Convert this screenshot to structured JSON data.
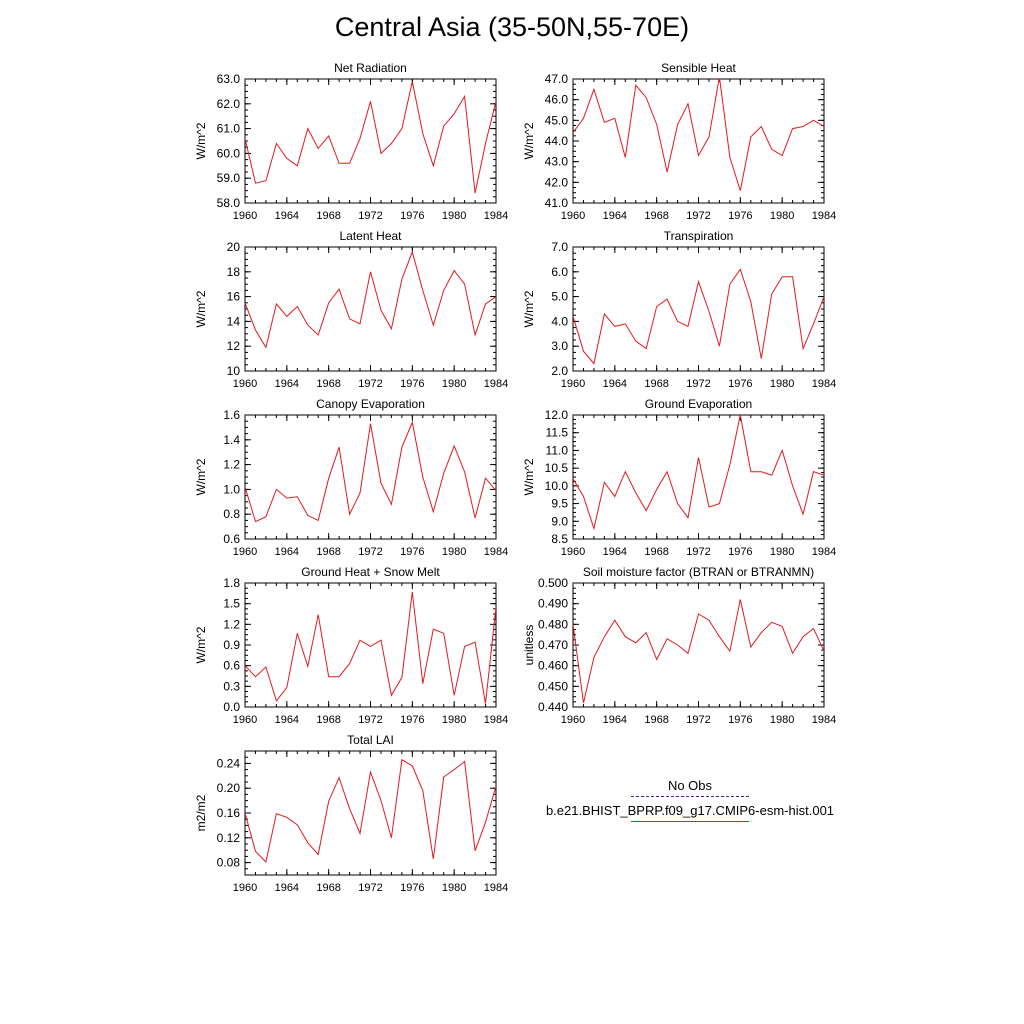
{
  "title": "Central Asia (35-50N,55-70E)",
  "colors": {
    "series": "#e31a1c",
    "axis": "#000000",
    "obs": "#2b2b8c"
  },
  "legend": {
    "obs_label": "No Obs",
    "model_label": "b.e21.BHIST_BPRP.f09_g17.CMIP6-esm-hist.001"
  },
  "chart_data": [
    {
      "type": "line",
      "title": "Net Radiation",
      "ylabel": "W/m^2",
      "x": [
        1960,
        1961,
        1962,
        1963,
        1964,
        1965,
        1966,
        1967,
        1968,
        1969,
        1970,
        1971,
        1972,
        1973,
        1974,
        1975,
        1976,
        1977,
        1978,
        1979,
        1980,
        1981,
        1982,
        1983,
        1984
      ],
      "values": [
        60.6,
        58.8,
        58.9,
        60.4,
        59.8,
        59.5,
        61.0,
        60.2,
        60.7,
        59.6,
        59.6,
        60.6,
        62.1,
        60.0,
        60.4,
        61.0,
        62.9,
        60.8,
        59.5,
        61.1,
        61.6,
        62.3,
        58.4,
        60.4,
        62.1
      ],
      "xlim": [
        1960,
        1984
      ],
      "ylim": [
        58.0,
        63.0
      ],
      "yticks": [
        "58.0",
        "59.0",
        "60.0",
        "61.0",
        "62.0",
        "63.0"
      ],
      "xticks": [
        "1960",
        "1964",
        "1968",
        "1972",
        "1976",
        "1980",
        "1984"
      ]
    },
    {
      "type": "line",
      "title": "Sensible Heat",
      "ylabel": "W/m^2",
      "x": [
        1960,
        1961,
        1962,
        1963,
        1964,
        1965,
        1966,
        1967,
        1968,
        1969,
        1970,
        1971,
        1972,
        1973,
        1974,
        1975,
        1976,
        1977,
        1978,
        1979,
        1980,
        1981,
        1982,
        1983,
        1984
      ],
      "values": [
        44.4,
        45.1,
        46.5,
        44.9,
        45.1,
        43.2,
        46.7,
        46.1,
        44.8,
        42.5,
        44.8,
        45.8,
        43.3,
        44.2,
        47.1,
        43.2,
        41.6,
        44.2,
        44.7,
        43.6,
        43.3,
        44.6,
        44.7,
        45.0,
        44.7
      ],
      "xlim": [
        1960,
        1984
      ],
      "ylim": [
        41.0,
        47.0
      ],
      "yticks": [
        "41.0",
        "42.0",
        "43.0",
        "44.0",
        "45.0",
        "46.0",
        "47.0"
      ],
      "xticks": [
        "1960",
        "1964",
        "1968",
        "1972",
        "1976",
        "1980",
        "1984"
      ]
    },
    {
      "type": "line",
      "title": "Latent Heat",
      "ylabel": "W/m^2",
      "x": [
        1960,
        1961,
        1962,
        1963,
        1964,
        1965,
        1966,
        1967,
        1968,
        1969,
        1970,
        1971,
        1972,
        1973,
        1974,
        1975,
        1976,
        1977,
        1978,
        1979,
        1980,
        1981,
        1982,
        1983,
        1984
      ],
      "values": [
        15.5,
        13.3,
        11.9,
        15.4,
        14.4,
        15.2,
        13.7,
        12.9,
        15.5,
        16.6,
        14.2,
        13.8,
        18.0,
        14.9,
        13.4,
        17.4,
        19.6,
        16.5,
        13.7,
        16.5,
        18.1,
        17.0,
        12.9,
        15.4,
        16.0
      ],
      "xlim": [
        1960,
        1984
      ],
      "ylim": [
        10,
        20
      ],
      "yticks": [
        "10",
        "12",
        "14",
        "16",
        "18",
        "20"
      ],
      "xticks": [
        "1960",
        "1964",
        "1968",
        "1972",
        "1976",
        "1980",
        "1984"
      ]
    },
    {
      "type": "line",
      "title": "Transpiration",
      "ylabel": "W/m^2",
      "x": [
        1960,
        1961,
        1962,
        1963,
        1964,
        1965,
        1966,
        1967,
        1968,
        1969,
        1970,
        1971,
        1972,
        1973,
        1974,
        1975,
        1976,
        1977,
        1978,
        1979,
        1980,
        1981,
        1982,
        1983,
        1984
      ],
      "values": [
        4.2,
        2.8,
        2.3,
        4.3,
        3.8,
        3.9,
        3.2,
        2.9,
        4.6,
        4.9,
        4.0,
        3.8,
        5.6,
        4.4,
        3.0,
        5.5,
        6.1,
        4.8,
        2.5,
        5.1,
        5.8,
        5.8,
        2.9,
        3.9,
        5.0
      ],
      "xlim": [
        1960,
        1984
      ],
      "ylim": [
        2.0,
        7.0
      ],
      "yticks": [
        "2.0",
        "3.0",
        "4.0",
        "5.0",
        "6.0",
        "7.0"
      ],
      "xticks": [
        "1960",
        "1964",
        "1968",
        "1972",
        "1976",
        "1980",
        "1984"
      ]
    },
    {
      "type": "line",
      "title": "Canopy Evaporation",
      "ylabel": "W/m^2",
      "x": [
        1960,
        1961,
        1962,
        1963,
        1964,
        1965,
        1966,
        1967,
        1968,
        1969,
        1970,
        1971,
        1972,
        1973,
        1974,
        1975,
        1976,
        1977,
        1978,
        1979,
        1980,
        1981,
        1982,
        1983,
        1984
      ],
      "values": [
        1.02,
        0.74,
        0.78,
        1.0,
        0.93,
        0.94,
        0.79,
        0.75,
        1.09,
        1.34,
        0.8,
        0.97,
        1.53,
        1.05,
        0.88,
        1.34,
        1.54,
        1.1,
        0.82,
        1.13,
        1.35,
        1.14,
        0.77,
        1.09,
        0.99
      ],
      "xlim": [
        1960,
        1984
      ],
      "ylim": [
        0.6,
        1.6
      ],
      "yticks": [
        "0.6",
        "0.8",
        "1.0",
        "1.2",
        "1.4",
        "1.6"
      ],
      "xticks": [
        "1960",
        "1964",
        "1968",
        "1972",
        "1976",
        "1980",
        "1984"
      ]
    },
    {
      "type": "line",
      "title": "Ground Evaporation",
      "ylabel": "W/m^2",
      "x": [
        1960,
        1961,
        1962,
        1963,
        1964,
        1965,
        1966,
        1967,
        1968,
        1969,
        1970,
        1971,
        1972,
        1973,
        1974,
        1975,
        1976,
        1977,
        1978,
        1979,
        1980,
        1981,
        1982,
        1983,
        1984
      ],
      "values": [
        10.2,
        9.7,
        8.8,
        10.1,
        9.7,
        10.4,
        9.8,
        9.3,
        9.9,
        10.4,
        9.5,
        9.1,
        10.8,
        9.4,
        9.5,
        10.6,
        12.0,
        10.4,
        10.4,
        10.3,
        11.0,
        10.0,
        9.2,
        10.4,
        10.3
      ],
      "xlim": [
        1960,
        1984
      ],
      "ylim": [
        8.5,
        12.0
      ],
      "yticks": [
        "8.5",
        "9.0",
        "9.5",
        "10.0",
        "10.5",
        "11.0",
        "11.5",
        "12.0"
      ],
      "xticks": [
        "1960",
        "1964",
        "1968",
        "1972",
        "1976",
        "1980",
        "1984"
      ]
    },
    {
      "type": "line",
      "title": "Ground Heat + Snow Melt",
      "ylabel": "W/m^2",
      "x": [
        1960,
        1961,
        1962,
        1963,
        1964,
        1965,
        1966,
        1967,
        1968,
        1969,
        1970,
        1971,
        1972,
        1973,
        1974,
        1975,
        1976,
        1977,
        1978,
        1979,
        1980,
        1981,
        1982,
        1983,
        1984
      ],
      "values": [
        0.6,
        0.44,
        0.58,
        0.09,
        0.28,
        1.07,
        0.59,
        1.34,
        0.44,
        0.44,
        0.63,
        0.97,
        0.88,
        0.97,
        0.17,
        0.43,
        1.67,
        0.34,
        1.13,
        1.07,
        0.17,
        0.88,
        0.94,
        0.05,
        1.45
      ],
      "xlim": [
        1960,
        1984
      ],
      "ylim": [
        0.0,
        1.8
      ],
      "yticks": [
        "0.0",
        "0.3",
        "0.6",
        "0.9",
        "1.2",
        "1.5",
        "1.8"
      ],
      "xticks": [
        "1960",
        "1964",
        "1968",
        "1972",
        "1976",
        "1980",
        "1984"
      ]
    },
    {
      "type": "line",
      "title": "Soil moisture factor (BTRAN or BTRANMN)",
      "ylabel": "unitless",
      "x": [
        1960,
        1961,
        1962,
        1963,
        1964,
        1965,
        1966,
        1967,
        1968,
        1969,
        1970,
        1971,
        1972,
        1973,
        1974,
        1975,
        1976,
        1977,
        1978,
        1979,
        1980,
        1981,
        1982,
        1983,
        1984
      ],
      "values": [
        0.48,
        0.442,
        0.464,
        0.474,
        0.482,
        0.474,
        0.471,
        0.476,
        0.463,
        0.473,
        0.47,
        0.466,
        0.485,
        0.482,
        0.474,
        0.467,
        0.492,
        0.469,
        0.476,
        0.481,
        0.479,
        0.466,
        0.474,
        0.478,
        0.467
      ],
      "xlim": [
        1960,
        1984
      ],
      "ylim": [
        0.44,
        0.5
      ],
      "yticks": [
        "0.440",
        "0.450",
        "0.460",
        "0.470",
        "0.480",
        "0.490",
        "0.500"
      ],
      "xticks": [
        "1960",
        "1964",
        "1968",
        "1972",
        "1976",
        "1980",
        "1984"
      ]
    },
    {
      "type": "line",
      "title": "Total LAI",
      "ylabel": "m2/m2",
      "x": [
        1960,
        1961,
        1962,
        1963,
        1964,
        1965,
        1966,
        1967,
        1968,
        1969,
        1970,
        1971,
        1972,
        1973,
        1974,
        1975,
        1976,
        1977,
        1978,
        1979,
        1980,
        1981,
        1982,
        1983,
        1984
      ],
      "values": [
        0.16,
        0.098,
        0.081,
        0.159,
        0.153,
        0.141,
        0.112,
        0.093,
        0.179,
        0.217,
        0.167,
        0.127,
        0.226,
        0.18,
        0.12,
        0.246,
        0.236,
        0.196,
        0.086,
        0.218,
        0.23,
        0.243,
        0.099,
        0.145,
        0.203
      ],
      "xlim": [
        1960,
        1984
      ],
      "ylim": [
        0.06,
        0.26
      ],
      "yticks": [
        "0.08",
        "0.12",
        "0.16",
        "0.20",
        "0.24"
      ],
      "xticks": [
        "1960",
        "1964",
        "1968",
        "1972",
        "1976",
        "1980",
        "1984"
      ]
    }
  ]
}
